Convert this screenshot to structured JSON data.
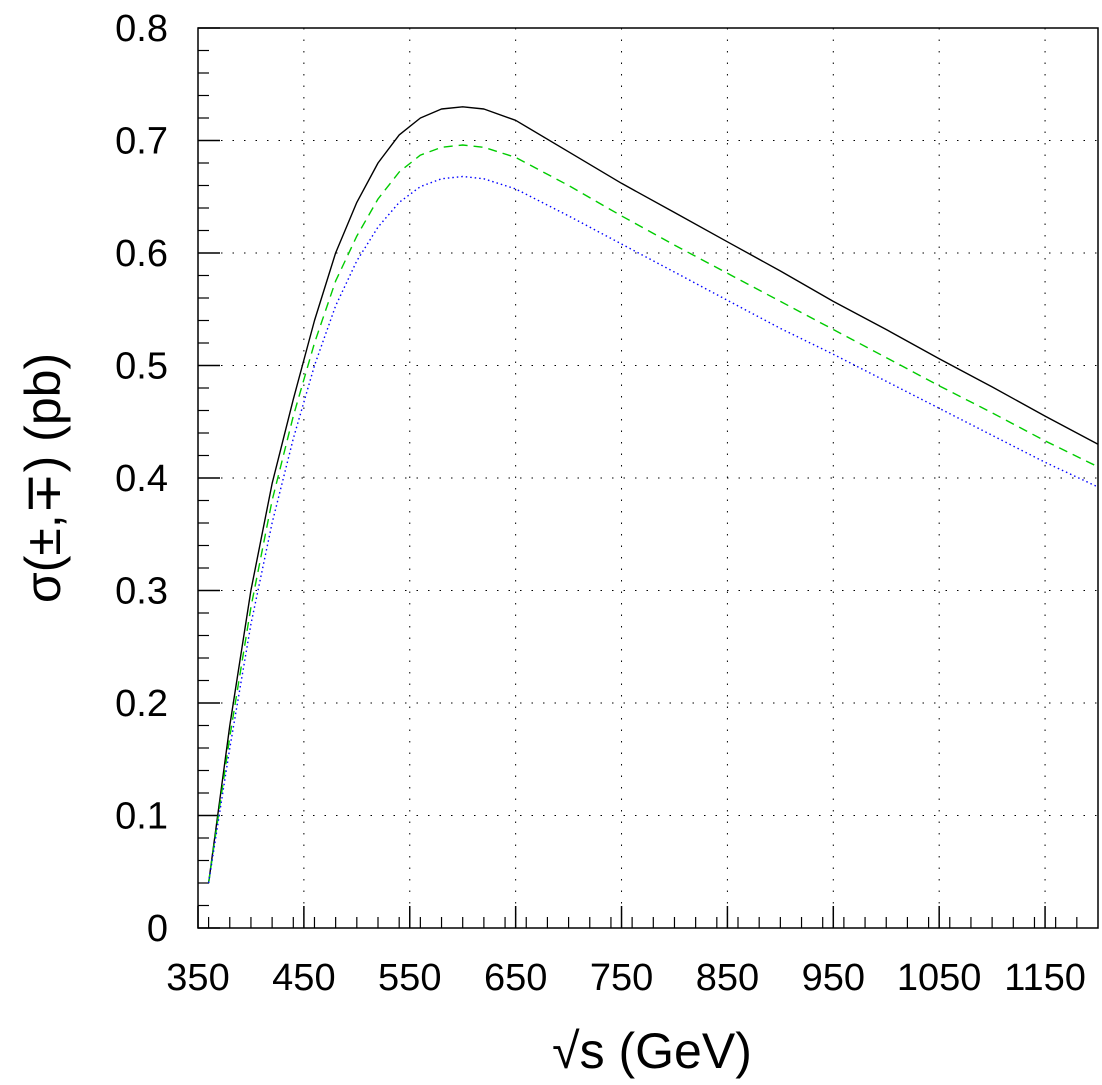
{
  "chart_data": {
    "type": "line",
    "xlabel": "√s (GeV)",
    "ylabel": "σ(±,∓) (pb)",
    "xlim": [
      350,
      1200
    ],
    "ylim": [
      0,
      0.8
    ],
    "x_ticks": [
      350,
      450,
      550,
      650,
      750,
      850,
      950,
      1050,
      1150
    ],
    "x_tick_labels": [
      "350",
      "450",
      "550",
      "650",
      "750",
      "850",
      "950",
      "1050",
      "1150"
    ],
    "y_ticks": [
      0,
      0.1,
      0.2,
      0.3,
      0.4,
      0.5,
      0.6,
      0.7,
      0.8
    ],
    "y_tick_labels": [
      "0",
      "0.1",
      "0.2",
      "0.3",
      "0.4",
      "0.5",
      "0.6",
      "0.7",
      "0.8"
    ],
    "grid": true,
    "legend": "none",
    "series": [
      {
        "color": "#000000",
        "style": "solid",
        "x": [
          360,
          380,
          400,
          420,
          440,
          460,
          480,
          500,
          520,
          540,
          560,
          580,
          600,
          620,
          650,
          700,
          750,
          800,
          850,
          900,
          950,
          1000,
          1050,
          1100,
          1150,
          1200
        ],
        "y": [
          0.04,
          0.18,
          0.3,
          0.395,
          0.47,
          0.54,
          0.6,
          0.645,
          0.68,
          0.705,
          0.72,
          0.728,
          0.73,
          0.728,
          0.718,
          0.69,
          0.662,
          0.636,
          0.61,
          0.584,
          0.557,
          0.532,
          0.506,
          0.481,
          0.455,
          0.43
        ]
      },
      {
        "color": "#00cc00",
        "style": "dashed",
        "x": [
          360,
          380,
          400,
          420,
          440,
          460,
          480,
          500,
          520,
          540,
          560,
          580,
          600,
          620,
          650,
          700,
          750,
          800,
          850,
          900,
          950,
          1000,
          1050,
          1100,
          1150,
          1200
        ],
        "y": [
          0.04,
          0.17,
          0.285,
          0.38,
          0.455,
          0.52,
          0.575,
          0.615,
          0.648,
          0.672,
          0.687,
          0.694,
          0.696,
          0.694,
          0.685,
          0.66,
          0.633,
          0.607,
          0.582,
          0.557,
          0.532,
          0.507,
          0.482,
          0.458,
          0.433,
          0.41
        ]
      },
      {
        "color": "#0000ff",
        "style": "dotted",
        "x": [
          360,
          380,
          400,
          420,
          440,
          460,
          480,
          500,
          520,
          540,
          560,
          580,
          600,
          620,
          650,
          700,
          750,
          800,
          850,
          900,
          950,
          1000,
          1050,
          1100,
          1150,
          1200
        ],
        "y": [
          0.04,
          0.16,
          0.27,
          0.36,
          0.435,
          0.5,
          0.553,
          0.593,
          0.623,
          0.645,
          0.659,
          0.666,
          0.668,
          0.666,
          0.657,
          0.633,
          0.608,
          0.583,
          0.558,
          0.533,
          0.51,
          0.486,
          0.462,
          0.438,
          0.414,
          0.392
        ]
      }
    ]
  }
}
